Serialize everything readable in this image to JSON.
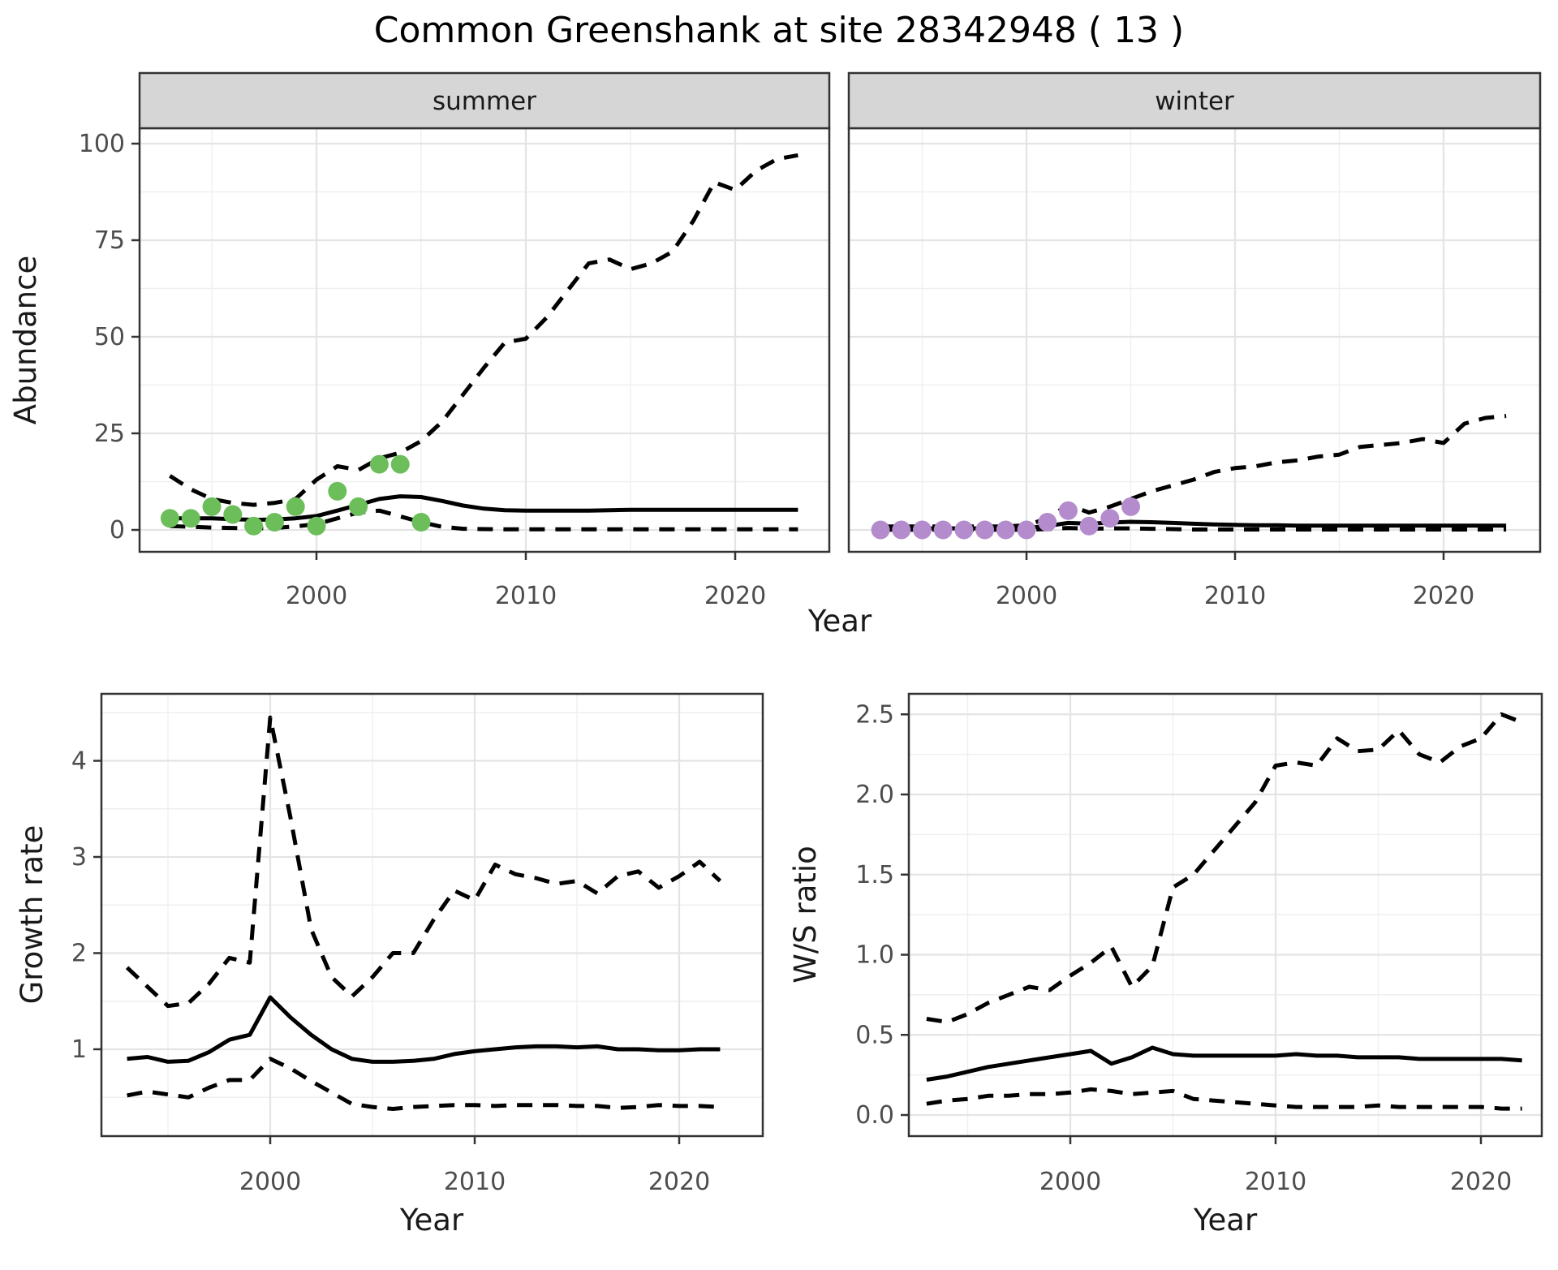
{
  "title": "Common Greenshank at site 28342948 ( 13 )",
  "colors": {
    "observed_summer": "#6CBE5B",
    "observed_winter": "#B48CCD",
    "line": "#000000",
    "strip_fill": "#D6D6D6",
    "panel_border": "#333333",
    "grid_major": "#E4E4E4",
    "grid_minor": "#EFEFEF"
  },
  "chart_data": [
    {
      "id": "abundance-summer",
      "type": "line",
      "facet_label": "summer",
      "ylabel": "Abundance",
      "xlabel": "Year",
      "x": [
        1993,
        1994,
        1995,
        1996,
        1997,
        1998,
        1999,
        2000,
        2001,
        2002,
        2003,
        2004,
        2005,
        2006,
        2007,
        2008,
        2009,
        2010,
        2011,
        2012,
        2013,
        2014,
        2015,
        2016,
        2017,
        2018,
        2019,
        2020,
        2021,
        2022,
        2023
      ],
      "series": [
        {
          "name": "upper-ci",
          "style": "dashed",
          "values": [
            14,
            10.5,
            8,
            7,
            6.5,
            7,
            8,
            13,
            16.5,
            15.5,
            18.5,
            20,
            23,
            28,
            35,
            42,
            48.5,
            49.5,
            55,
            62,
            69,
            70,
            67.5,
            69,
            72,
            80,
            90,
            88,
            93,
            96,
            97
          ]
        },
        {
          "name": "lower-ci",
          "style": "dashed",
          "values": [
            1,
            0.8,
            0.6,
            0.5,
            0.4,
            0.5,
            0.9,
            1.5,
            3,
            4.5,
            5,
            3.5,
            2,
            0.8,
            0.3,
            0.2,
            0.15,
            0.15,
            0.15,
            0.15,
            0.15,
            0.15,
            0.15,
            0.15,
            0.15,
            0.15,
            0.15,
            0.15,
            0.15,
            0.15,
            0.15
          ]
        },
        {
          "name": "fit",
          "style": "solid",
          "values": [
            3,
            3,
            3,
            2.8,
            2.6,
            2.7,
            3,
            3.6,
            5,
            6.5,
            8,
            8.7,
            8.5,
            7.5,
            6.3,
            5.5,
            5.1,
            5,
            5,
            5,
            5,
            5.1,
            5.2,
            5.2,
            5.2,
            5.2,
            5.2,
            5.2,
            5.2,
            5.2,
            5.2
          ]
        }
      ],
      "observations": {
        "years": [
          1993,
          1994,
          1995,
          1996,
          1997,
          1998,
          1999,
          2000,
          2001,
          2002,
          2003,
          2004,
          2005
        ],
        "values": [
          3,
          3,
          6,
          4,
          1,
          2,
          6,
          1,
          10,
          6,
          17,
          17,
          2
        ],
        "color": "#6CBE5B"
      },
      "xticks": [
        2000,
        2010,
        2020
      ],
      "xtick_labels": [
        "2000",
        "2010",
        "2020"
      ],
      "yticks": [
        0,
        25,
        50,
        75,
        100
      ],
      "ytick_labels": [
        "0",
        "25",
        "50",
        "75",
        "100"
      ],
      "xlim": [
        1992,
        2024
      ],
      "ylim": [
        -4,
        104
      ],
      "grid": true,
      "legend": "none"
    },
    {
      "id": "abundance-winter",
      "type": "line",
      "facet_label": "winter",
      "ylabel": "Abundance",
      "xlabel": "Year",
      "x": [
        1993,
        1994,
        1995,
        1996,
        1997,
        1998,
        1999,
        2000,
        2001,
        2002,
        2003,
        2004,
        2005,
        2006,
        2007,
        2008,
        2009,
        2010,
        2011,
        2012,
        2013,
        2014,
        2015,
        2016,
        2017,
        2018,
        2019,
        2020,
        2021,
        2022,
        2023
      ],
      "series": [
        {
          "name": "upper-ci",
          "style": "dashed",
          "values": [
            0.9,
            0.9,
            0.9,
            0.9,
            0.9,
            0.9,
            0.9,
            1.2,
            3,
            6.5,
            4.5,
            6,
            8,
            10,
            11.5,
            13,
            15,
            16,
            16.5,
            17.5,
            18,
            19,
            19.5,
            21.5,
            22,
            22.5,
            23.5,
            22.5,
            27.5,
            29,
            29.5
          ]
        },
        {
          "name": "lower-ci",
          "style": "dashed",
          "values": [
            0.05,
            0.05,
            0.05,
            0.05,
            0.05,
            0.05,
            0.05,
            0.05,
            0.2,
            0.5,
            0.3,
            0.4,
            0.4,
            0.3,
            0.2,
            0.1,
            0.1,
            0.1,
            0.1,
            0.1,
            0.1,
            0.1,
            0.1,
            0.1,
            0.1,
            0.1,
            0.1,
            0.1,
            0.1,
            0.1,
            0.1
          ]
        },
        {
          "name": "fit",
          "style": "solid",
          "values": [
            0.4,
            0.4,
            0.4,
            0.4,
            0.4,
            0.4,
            0.4,
            0.5,
            1,
            1.8,
            1.6,
            1.9,
            2.1,
            2.0,
            1.8,
            1.6,
            1.4,
            1.3,
            1.2,
            1.2,
            1.1,
            1.1,
            1.1,
            1.1,
            1.1,
            1.1,
            1.1,
            1.1,
            1.1,
            1.1,
            1.1
          ]
        }
      ],
      "observations": {
        "years": [
          1993,
          1994,
          1995,
          1996,
          1997,
          1998,
          1999,
          2000,
          2001,
          2002,
          2003,
          2004,
          2005
        ],
        "values": [
          0,
          0,
          0,
          0,
          0,
          0,
          0,
          0,
          2,
          5,
          1,
          3,
          6
        ],
        "color": "#B48CCD"
      },
      "xticks": [
        2000,
        2010,
        2020
      ],
      "xtick_labels": [
        "2000",
        "2010",
        "2020"
      ],
      "yticks": [
        0,
        25,
        50,
        75,
        100
      ],
      "ytick_labels": [
        "0",
        "25",
        "50",
        "75",
        "100"
      ],
      "xlim": [
        1992,
        2024
      ],
      "ylim": [
        -4,
        104
      ],
      "grid": true,
      "legend": "none"
    },
    {
      "id": "growth-rate",
      "type": "line",
      "facet_label": "",
      "ylabel": "Growth rate",
      "xlabel": "Year",
      "x": [
        1993,
        1994,
        1995,
        1996,
        1997,
        1998,
        1999,
        2000,
        2001,
        2002,
        2003,
        2004,
        2005,
        2006,
        2007,
        2008,
        2009,
        2010,
        2011,
        2012,
        2013,
        2014,
        2015,
        2016,
        2017,
        2018,
        2019,
        2020,
        2021,
        2022
      ],
      "series": [
        {
          "name": "upper-ci",
          "style": "dashed",
          "values": [
            1.85,
            1.65,
            1.45,
            1.48,
            1.68,
            1.95,
            1.9,
            4.45,
            3.4,
            2.25,
            1.75,
            1.55,
            1.75,
            2.0,
            2.0,
            2.35,
            2.65,
            2.55,
            2.92,
            2.82,
            2.78,
            2.72,
            2.75,
            2.62,
            2.8,
            2.85,
            2.68,
            2.8,
            2.95,
            2.75
          ]
        },
        {
          "name": "lower-ci",
          "style": "dashed",
          "values": [
            0.52,
            0.56,
            0.53,
            0.5,
            0.6,
            0.68,
            0.68,
            0.9,
            0.8,
            0.67,
            0.55,
            0.43,
            0.4,
            0.38,
            0.4,
            0.41,
            0.42,
            0.42,
            0.41,
            0.42,
            0.42,
            0.42,
            0.41,
            0.41,
            0.39,
            0.4,
            0.42,
            0.41,
            0.41,
            0.4
          ]
        },
        {
          "name": "fit",
          "style": "solid",
          "values": [
            0.9,
            0.92,
            0.87,
            0.88,
            0.97,
            1.1,
            1.15,
            1.54,
            1.33,
            1.15,
            1.0,
            0.9,
            0.87,
            0.87,
            0.88,
            0.9,
            0.95,
            0.98,
            1.0,
            1.02,
            1.03,
            1.03,
            1.02,
            1.03,
            1.0,
            1.0,
            0.99,
            0.99,
            1.0,
            1.0
          ]
        }
      ],
      "xticks": [
        2000,
        2010,
        2020
      ],
      "xtick_labels": [
        "2000",
        "2010",
        "2020"
      ],
      "yticks": [
        1,
        2,
        3,
        4
      ],
      "ytick_labels": [
        "1",
        "2",
        "3",
        "4"
      ],
      "xlim": [
        1992,
        2024
      ],
      "ylim": [
        0.1,
        4.7
      ],
      "grid": true,
      "legend": "none"
    },
    {
      "id": "ws-ratio",
      "type": "line",
      "facet_label": "",
      "ylabel": "W/S ratio",
      "xlabel": "Year",
      "x": [
        1993,
        1994,
        1995,
        1996,
        1997,
        1998,
        1999,
        2000,
        2001,
        2002,
        2003,
        2004,
        2005,
        2006,
        2007,
        2008,
        2009,
        2010,
        2011,
        2012,
        2013,
        2014,
        2015,
        2016,
        2017,
        2018,
        2019,
        2020,
        2021,
        2022
      ],
      "series": [
        {
          "name": "upper-ci",
          "style": "dashed",
          "values": [
            0.6,
            0.58,
            0.63,
            0.7,
            0.75,
            0.8,
            0.78,
            0.87,
            0.95,
            1.05,
            0.8,
            0.93,
            1.42,
            1.5,
            1.65,
            1.8,
            1.95,
            2.18,
            2.2,
            2.18,
            2.35,
            2.27,
            2.28,
            2.4,
            2.25,
            2.2,
            2.3,
            2.35,
            2.5,
            2.45
          ]
        },
        {
          "name": "lower-ci",
          "style": "dashed",
          "values": [
            0.07,
            0.09,
            0.1,
            0.12,
            0.12,
            0.13,
            0.13,
            0.14,
            0.16,
            0.15,
            0.13,
            0.14,
            0.15,
            0.1,
            0.09,
            0.08,
            0.07,
            0.06,
            0.05,
            0.05,
            0.05,
            0.05,
            0.06,
            0.05,
            0.05,
            0.05,
            0.05,
            0.05,
            0.04,
            0.04
          ]
        },
        {
          "name": "fit",
          "style": "solid",
          "values": [
            0.22,
            0.24,
            0.27,
            0.3,
            0.32,
            0.34,
            0.36,
            0.38,
            0.4,
            0.32,
            0.36,
            0.42,
            0.38,
            0.37,
            0.37,
            0.37,
            0.37,
            0.37,
            0.38,
            0.37,
            0.37,
            0.36,
            0.36,
            0.36,
            0.35,
            0.35,
            0.35,
            0.35,
            0.35,
            0.34
          ]
        }
      ],
      "xticks": [
        2000,
        2010,
        2020
      ],
      "xtick_labels": [
        "2000",
        "2010",
        "2020"
      ],
      "yticks": [
        0,
        0.5,
        1,
        1.5,
        2,
        2.5
      ],
      "ytick_labels": [
        "0.0",
        "0.5",
        "1.0",
        "1.5",
        "2.0",
        "2.5"
      ],
      "xlim": [
        1992,
        2024
      ],
      "ylim": [
        -0.13,
        2.63
      ],
      "grid": true,
      "legend": "none"
    }
  ]
}
